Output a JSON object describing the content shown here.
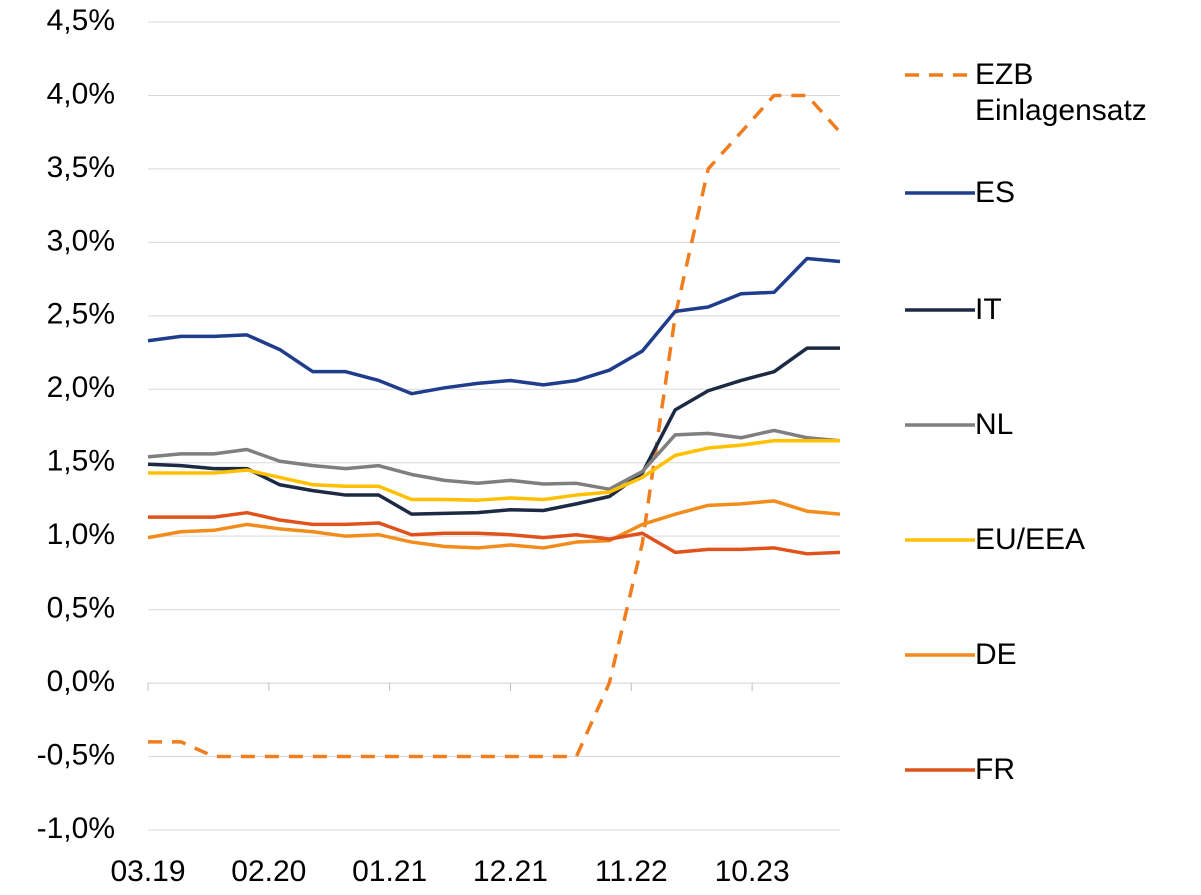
{
  "chart_data": {
    "type": "line",
    "x": [
      0,
      3,
      6,
      9,
      12,
      15,
      18,
      21,
      24,
      27,
      30,
      33,
      36,
      39,
      42,
      45,
      48,
      51,
      54,
      57,
      60,
      63
    ],
    "xlim": [
      0,
      63
    ],
    "xticks": [
      {
        "value": 0,
        "label": "03.19"
      },
      {
        "value": 11,
        "label": "02.20"
      },
      {
        "value": 22,
        "label": "01.21"
      },
      {
        "value": 33,
        "label": "12.21"
      },
      {
        "value": 44,
        "label": "11.22"
      },
      {
        "value": 55,
        "label": "10.23"
      }
    ],
    "ylim": [
      -1.0,
      4.5
    ],
    "yticks": [
      {
        "value": -1.0,
        "label": "-1,0%"
      },
      {
        "value": -0.5,
        "label": "-0,5%"
      },
      {
        "value": 0,
        "label": "0,0%"
      },
      {
        "value": 0.5,
        "label": "0,5%"
      },
      {
        "value": 1.0,
        "label": "1,0%"
      },
      {
        "value": 1.5,
        "label": "1,5%"
      },
      {
        "value": 2.0,
        "label": "2,0%"
      },
      {
        "value": 2.5,
        "label": "2,5%"
      },
      {
        "value": 3.0,
        "label": "3,0%"
      },
      {
        "value": 3.5,
        "label": "3,5%"
      },
      {
        "value": 4.0,
        "label": "4,0%"
      },
      {
        "value": 4.5,
        "label": "4,5%"
      }
    ],
    "grid": true,
    "series": [
      {
        "name": "EZB Einlagensatz",
        "color": "#f07d1e",
        "dashed": true,
        "values": [
          -0.4,
          -0.4,
          -0.5,
          -0.5,
          -0.5,
          -0.5,
          -0.5,
          -0.5,
          -0.5,
          -0.5,
          -0.5,
          -0.5,
          -0.5,
          -0.5,
          0.0,
          0.95,
          2.5,
          3.5,
          3.75,
          4.0,
          4.0,
          3.75
        ]
      },
      {
        "name": "ES",
        "color": "#1f3d8c",
        "values": [
          2.33,
          2.36,
          2.36,
          2.37,
          2.27,
          2.12,
          2.12,
          2.06,
          1.97,
          2.01,
          2.04,
          2.06,
          2.03,
          2.06,
          2.13,
          2.26,
          2.53,
          2.56,
          2.65,
          2.66,
          2.89,
          2.87
        ]
      },
      {
        "name": "IT",
        "color": "#1c2a44",
        "values": [
          1.49,
          1.48,
          1.46,
          1.46,
          1.35,
          1.31,
          1.28,
          1.28,
          1.15,
          1.155,
          1.16,
          1.18,
          1.175,
          1.22,
          1.27,
          1.43,
          1.86,
          1.99,
          2.06,
          2.12,
          2.28,
          2.28
        ]
      },
      {
        "name": "NL",
        "color": "#7f7f7f",
        "values": [
          1.54,
          1.56,
          1.56,
          1.59,
          1.51,
          1.48,
          1.46,
          1.48,
          1.42,
          1.38,
          1.36,
          1.38,
          1.355,
          1.36,
          1.32,
          1.44,
          1.69,
          1.7,
          1.67,
          1.72,
          1.67,
          1.65
        ]
      },
      {
        "name": "EU/EEA",
        "color": "#ffc000",
        "values": [
          1.43,
          1.43,
          1.43,
          1.45,
          1.4,
          1.35,
          1.34,
          1.34,
          1.25,
          1.25,
          1.245,
          1.26,
          1.25,
          1.28,
          1.3,
          1.4,
          1.55,
          1.6,
          1.62,
          1.65,
          1.65,
          1.65
        ]
      },
      {
        "name": "DE",
        "color": "#f28c1c",
        "values": [
          0.99,
          1.03,
          1.04,
          1.08,
          1.05,
          1.03,
          1.0,
          1.01,
          0.96,
          0.93,
          0.92,
          0.94,
          0.92,
          0.96,
          0.97,
          1.08,
          1.15,
          1.21,
          1.22,
          1.24,
          1.17,
          1.15
        ]
      },
      {
        "name": "FR",
        "color": "#e0521c",
        "values": [
          1.13,
          1.13,
          1.13,
          1.16,
          1.11,
          1.08,
          1.08,
          1.09,
          1.01,
          1.02,
          1.02,
          1.01,
          0.99,
          1.01,
          0.98,
          1.02,
          0.89,
          0.91,
          0.91,
          0.92,
          0.88,
          0.89
        ]
      }
    ]
  }
}
